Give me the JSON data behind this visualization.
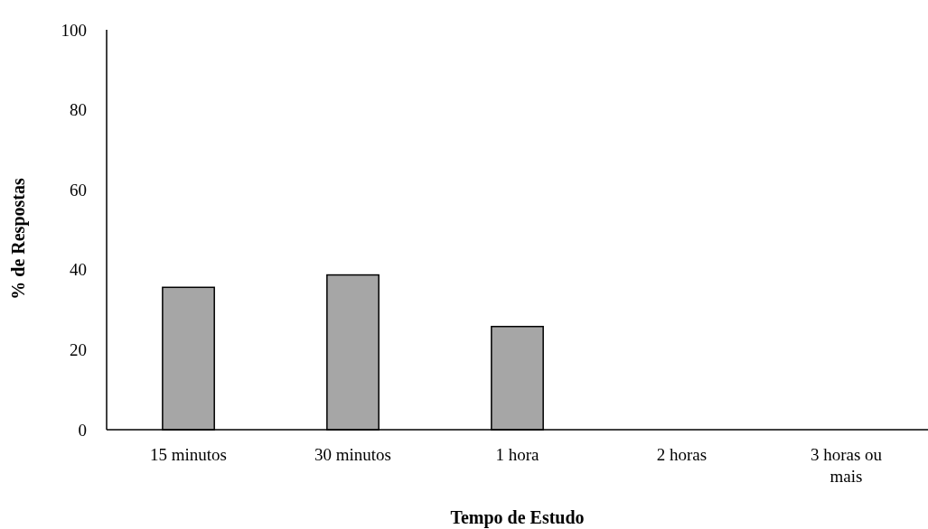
{
  "chart_data": {
    "type": "bar",
    "xlabel": "Tempo de Estudo",
    "ylabel": "% de Respostas",
    "categories": [
      "15 minutos",
      "30 minutos",
      "1 hora",
      "2 horas",
      "3 horas ou mais"
    ],
    "values": [
      35.6,
      38.7,
      25.8,
      0,
      0
    ],
    "color": "#a6a6a6",
    "ylim": [
      0,
      100
    ],
    "yticks": [
      0,
      20,
      40,
      60,
      80,
      100
    ],
    "grid": false
  }
}
